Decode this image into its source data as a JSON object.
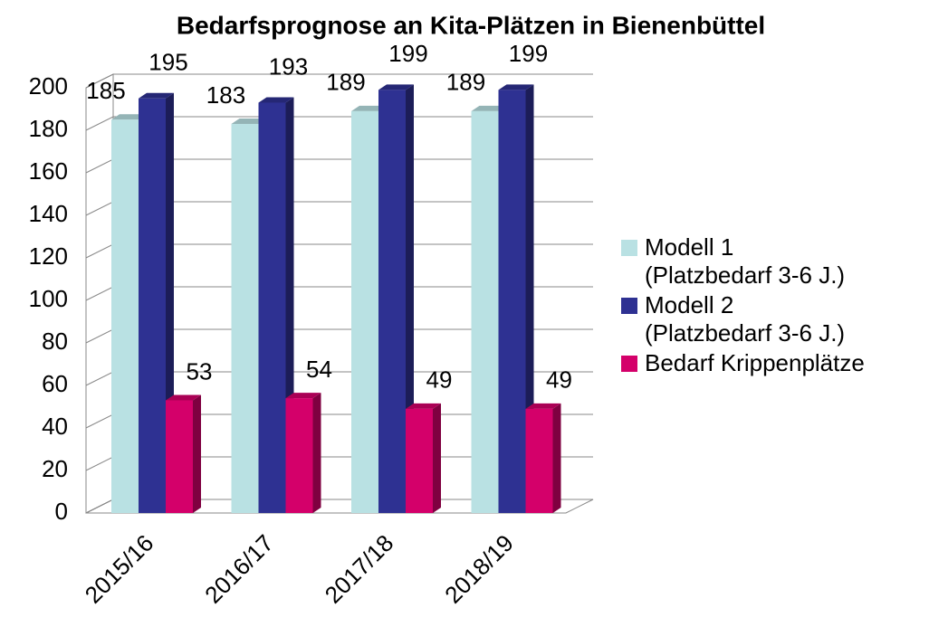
{
  "chart_data": {
    "type": "bar3d",
    "title": "Bedarfsprognose an Kita-Plätzen in Bienenbüttel",
    "categories": [
      "2015/16",
      "2016/17",
      "2017/18",
      "2018/19"
    ],
    "series": [
      {
        "name": "Modell 1\n(Platzbedarf 3-6 J.)",
        "color": "#b9e1e3",
        "values": [
          185,
          183,
          189,
          189
        ]
      },
      {
        "name": "Modell 2\n(Platzbedarf 3-6 J.)",
        "color": "#2e3192",
        "values": [
          195,
          193,
          199,
          199
        ]
      },
      {
        "name": "Bedarf Krippenplätze",
        "color": "#d4006a",
        "values": [
          53,
          54,
          49,
          49
        ]
      }
    ],
    "ylim": [
      0,
      200
    ],
    "yticks": [
      0,
      20,
      40,
      60,
      80,
      100,
      120,
      140,
      160,
      180,
      200
    ],
    "grid": true,
    "legend": "right"
  }
}
